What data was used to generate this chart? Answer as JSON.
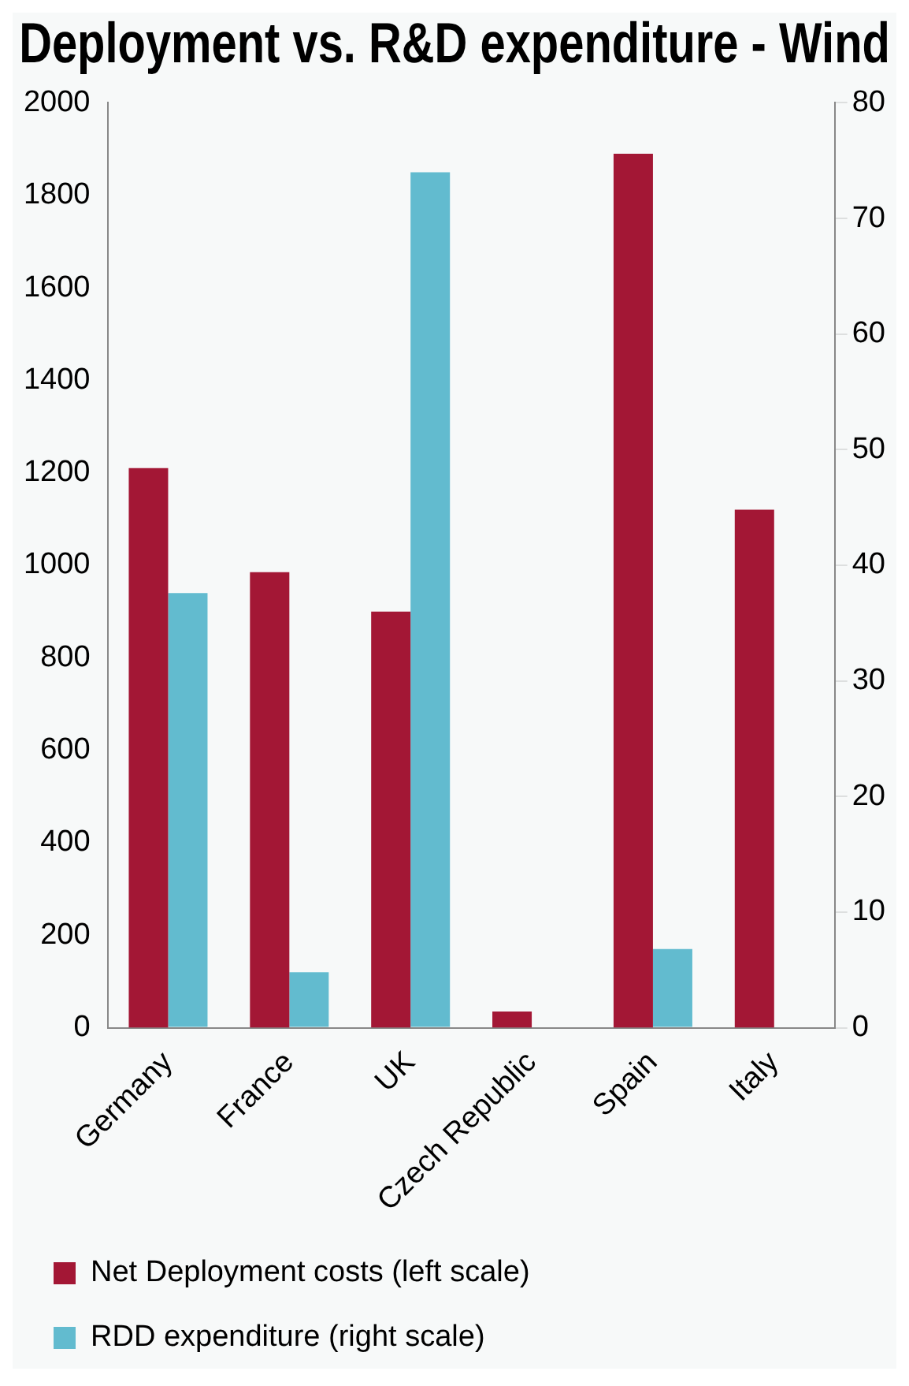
{
  "chart_data": {
    "type": "bar",
    "title": "Deployment vs. R&D expenditure - Wind",
    "categories": [
      "Germany",
      "France",
      "UK",
      "Czech Republic",
      "Spain",
      "Italy"
    ],
    "series": [
      {
        "name": "Net Deployment costs (left scale)",
        "color": "#a31735",
        "values": [
          1210,
          985,
          900,
          35,
          1890,
          1120
        ]
      },
      {
        "name": "RDD expenditure (right scale)",
        "color": "#62bbcf",
        "axis": "y2",
        "values": [
          37.6,
          4.8,
          74,
          null,
          6.8,
          null
        ]
      }
    ],
    "ylim": [
      0,
      2000
    ],
    "yticks": [
      0,
      200,
      400,
      600,
      800,
      1000,
      1200,
      1400,
      1600,
      1800,
      2000
    ],
    "y2lim": [
      0,
      80
    ],
    "y2ticks": [
      0,
      10,
      20,
      30,
      40,
      50,
      60,
      70,
      80
    ],
    "grid": false,
    "legend": "bottom"
  }
}
